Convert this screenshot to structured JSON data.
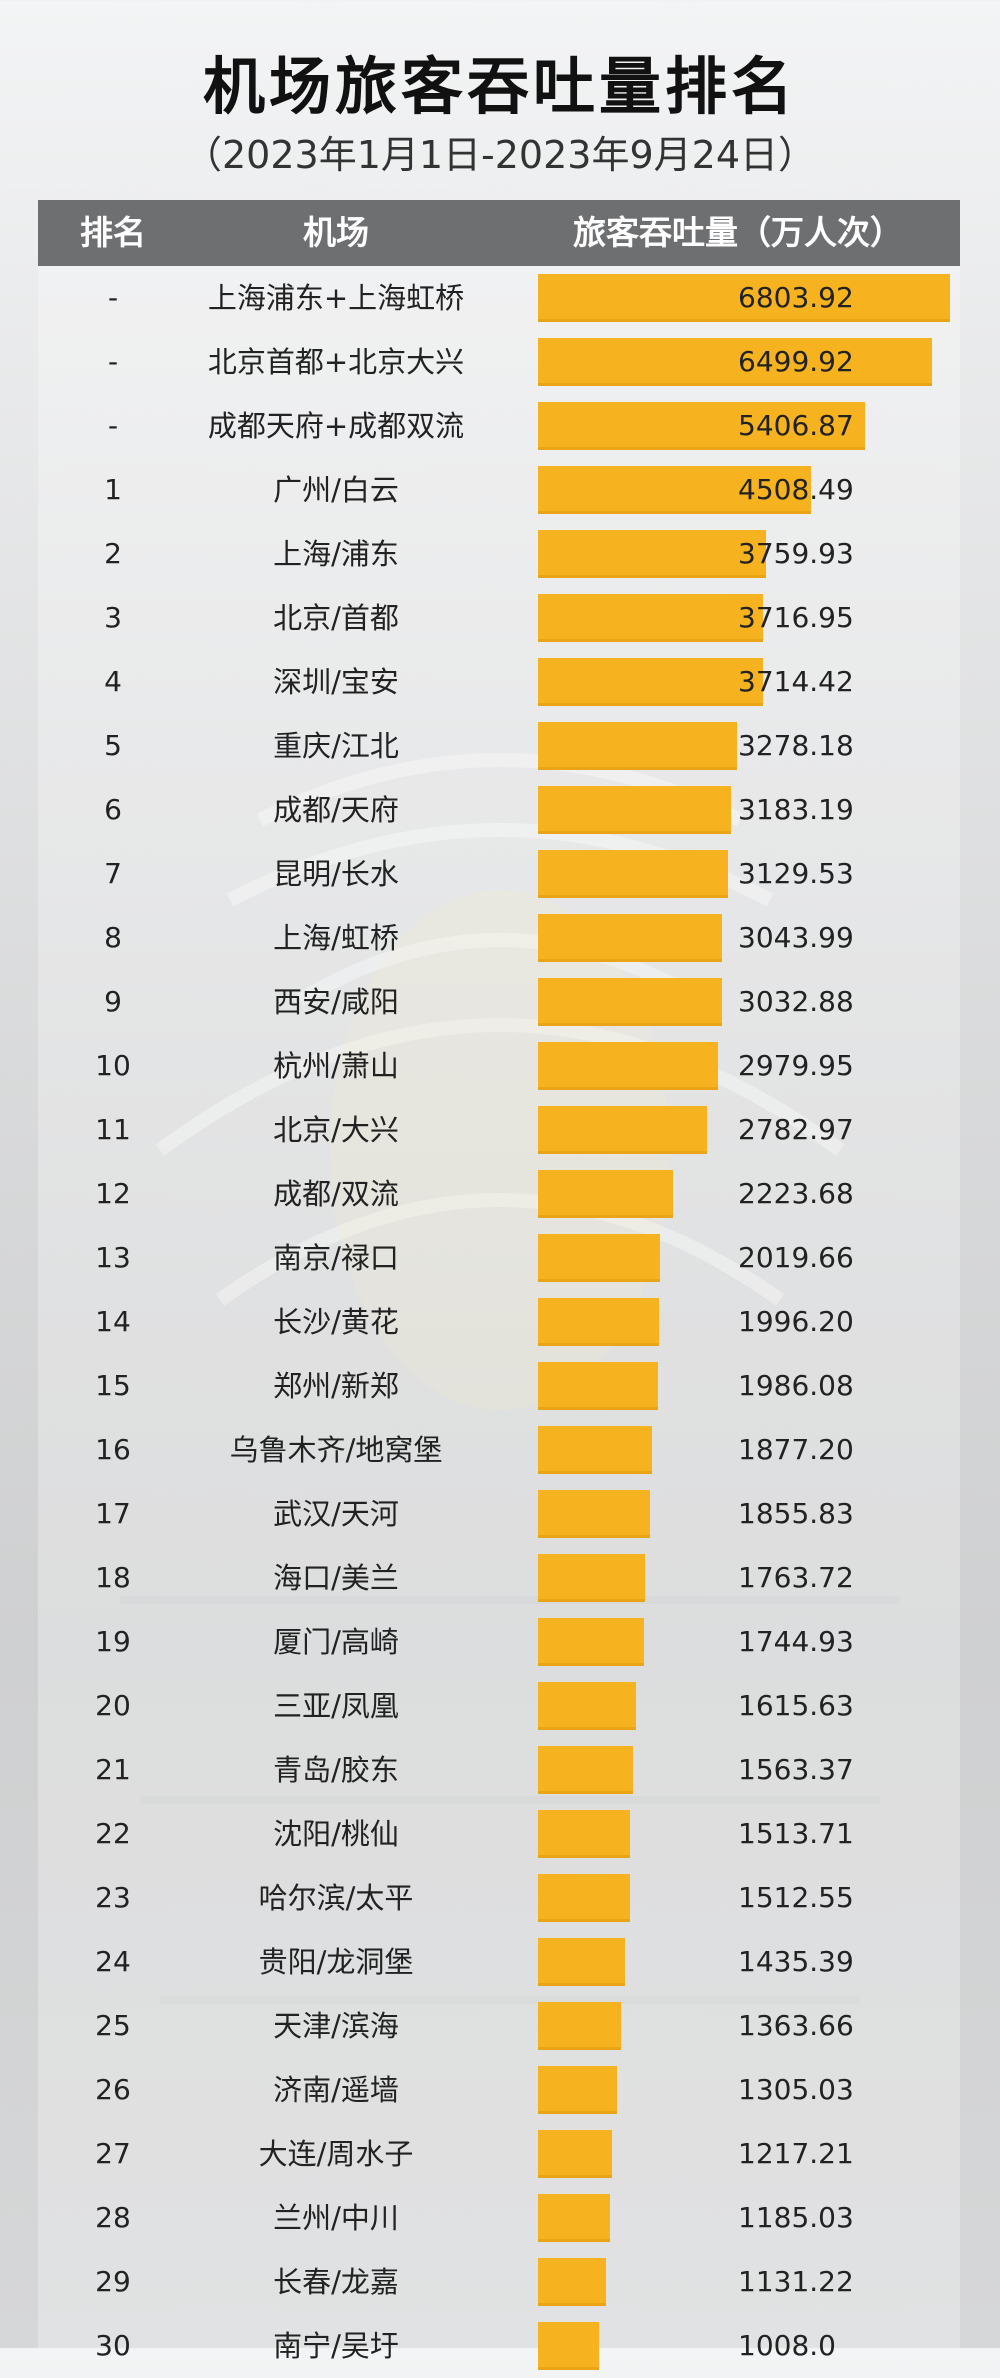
{
  "title": "机场旅客吞吐量排名",
  "subtitle": "（2023年1月1日-2023年9月24日）",
  "columns": {
    "rank": "排名",
    "airport": "机场",
    "value": "旅客吞吐量（万人次）"
  },
  "chart_data": {
    "type": "bar",
    "orientation": "horizontal",
    "title": "机场旅客吞吐量排名",
    "subtitle": "（2023年1月1日-2023年9月24日）",
    "ylabel": "旅客吞吐量（万人次）",
    "xlim": [
      0,
      6803.92
    ],
    "colors": {
      "bar": "#f7b31f",
      "header": "#6e6f71"
    },
    "rows": [
      {
        "rank": "-",
        "airport": "上海浦东+上海虹桥",
        "value": 6803.92,
        "label": "6803.92"
      },
      {
        "rank": "-",
        "airport": "北京首都+北京大兴",
        "value": 6499.92,
        "label": "6499.92"
      },
      {
        "rank": "-",
        "airport": "成都天府+成都双流",
        "value": 5406.87,
        "label": "5406.87"
      },
      {
        "rank": "1",
        "airport": "广州/白云",
        "value": 4508.49,
        "label": "4508.49"
      },
      {
        "rank": "2",
        "airport": "上海/浦东",
        "value": 3759.93,
        "label": "3759.93"
      },
      {
        "rank": "3",
        "airport": "北京/首都",
        "value": 3716.95,
        "label": "3716.95"
      },
      {
        "rank": "4",
        "airport": "深圳/宝安",
        "value": 3714.42,
        "label": "3714.42"
      },
      {
        "rank": "5",
        "airport": "重庆/江北",
        "value": 3278.18,
        "label": "3278.18"
      },
      {
        "rank": "6",
        "airport": "成都/天府",
        "value": 3183.19,
        "label": "3183.19"
      },
      {
        "rank": "7",
        "airport": "昆明/长水",
        "value": 3129.53,
        "label": "3129.53"
      },
      {
        "rank": "8",
        "airport": "上海/虹桥",
        "value": 3043.99,
        "label": "3043.99"
      },
      {
        "rank": "9",
        "airport": "西安/咸阳",
        "value": 3032.88,
        "label": "3032.88"
      },
      {
        "rank": "10",
        "airport": "杭州/萧山",
        "value": 2979.95,
        "label": "2979.95"
      },
      {
        "rank": "11",
        "airport": "北京/大兴",
        "value": 2782.97,
        "label": "2782.97"
      },
      {
        "rank": "12",
        "airport": "成都/双流",
        "value": 2223.68,
        "label": "2223.68"
      },
      {
        "rank": "13",
        "airport": "南京/禄口",
        "value": 2019.66,
        "label": "2019.66"
      },
      {
        "rank": "14",
        "airport": "长沙/黄花",
        "value": 1996.2,
        "label": "1996.20"
      },
      {
        "rank": "15",
        "airport": "郑州/新郑",
        "value": 1986.08,
        "label": "1986.08"
      },
      {
        "rank": "16",
        "airport": "乌鲁木齐/地窝堡",
        "value": 1877.2,
        "label": "1877.20"
      },
      {
        "rank": "17",
        "airport": "武汉/天河",
        "value": 1855.83,
        "label": "1855.83"
      },
      {
        "rank": "18",
        "airport": "海口/美兰",
        "value": 1763.72,
        "label": "1763.72"
      },
      {
        "rank": "19",
        "airport": "厦门/高崎",
        "value": 1744.93,
        "label": "1744.93"
      },
      {
        "rank": "20",
        "airport": "三亚/凤凰",
        "value": 1615.63,
        "label": "1615.63"
      },
      {
        "rank": "21",
        "airport": "青岛/胶东",
        "value": 1563.37,
        "label": "1563.37"
      },
      {
        "rank": "22",
        "airport": "沈阳/桃仙",
        "value": 1513.71,
        "label": "1513.71"
      },
      {
        "rank": "23",
        "airport": "哈尔滨/太平",
        "value": 1512.55,
        "label": "1512.55"
      },
      {
        "rank": "24",
        "airport": "贵阳/龙洞堡",
        "value": 1435.39,
        "label": "1435.39"
      },
      {
        "rank": "25",
        "airport": "天津/滨海",
        "value": 1363.66,
        "label": "1363.66"
      },
      {
        "rank": "26",
        "airport": "济南/遥墙",
        "value": 1305.03,
        "label": "1305.03"
      },
      {
        "rank": "27",
        "airport": "大连/周水子",
        "value": 1217.21,
        "label": "1217.21"
      },
      {
        "rank": "28",
        "airport": "兰州/中川",
        "value": 1185.03,
        "label": "1185.03"
      },
      {
        "rank": "29",
        "airport": "长春/龙嘉",
        "value": 1131.22,
        "label": "1131.22"
      },
      {
        "rank": "30",
        "airport": "南宁/吴圩",
        "value": 1008.0,
        "label": "1008.0"
      }
    ]
  }
}
